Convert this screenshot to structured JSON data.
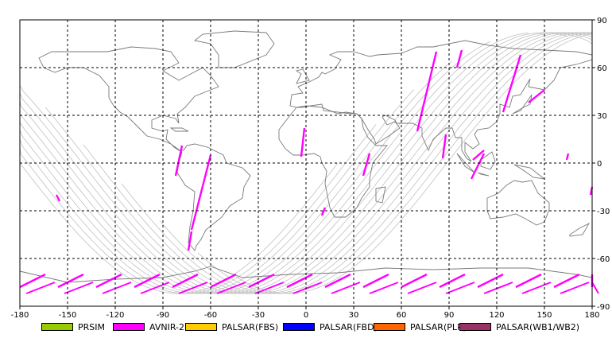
{
  "map": {
    "x_ticks": [
      "-180",
      "-150",
      "-120",
      "-90",
      "-60",
      "-30",
      "0",
      "30",
      "60",
      "90",
      "120",
      "150",
      "180"
    ],
    "y_ticks": [
      "90",
      "60",
      "30",
      "0",
      "-30",
      "-60",
      "-90"
    ],
    "colors": {
      "frame": "#000000",
      "grid": "#000000",
      "coast": "#7a7a7a",
      "orbit": "#c0c0c0",
      "swath": "#ff00ff"
    }
  },
  "legend": [
    {
      "label": "PRSIM",
      "color": "#99cc00"
    },
    {
      "label": "AVNIR-2",
      "color": "#ff00ff"
    },
    {
      "label": "PALSAR(FBS)",
      "color": "#ffcc00"
    },
    {
      "label": "PALSAR(FBD)",
      "color": "#0000ff"
    },
    {
      "label": "PALSAR(PLR)",
      "color": "#ff6600"
    },
    {
      "label": "PALSAR(WB1/WB2)",
      "color": "#993366"
    }
  ]
}
